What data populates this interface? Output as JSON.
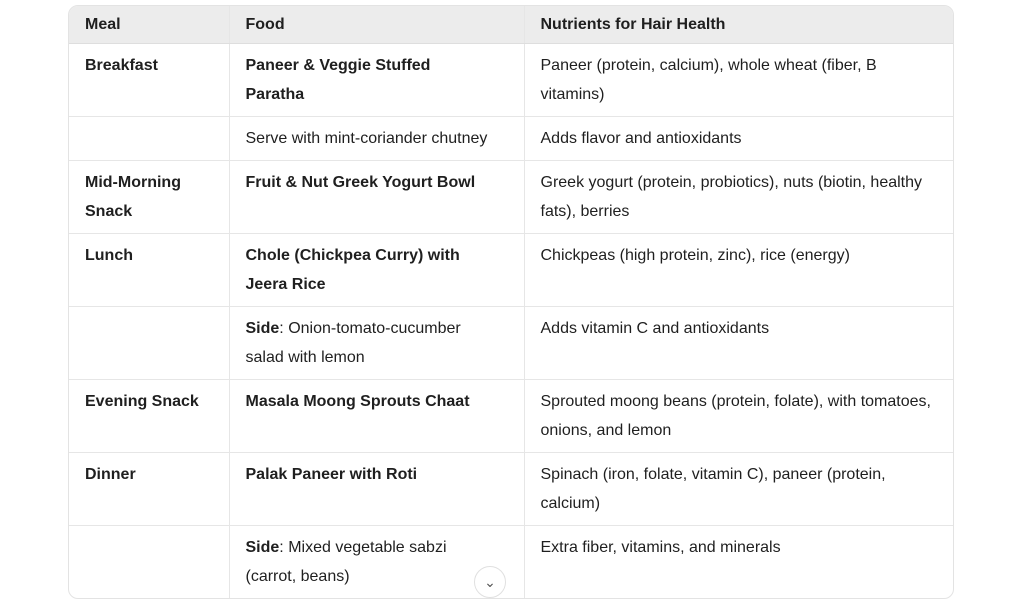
{
  "table": {
    "headers": [
      "Meal",
      "Food",
      "Nutrients for Hair Health"
    ],
    "rows": [
      {
        "meal": "Breakfast",
        "food_bold": "Paneer & Veggie Stuffed Paratha",
        "food_regular": "",
        "nutrients": "Paneer (protein, calcium), whole wheat (fiber, B vitamins)"
      },
      {
        "meal": "",
        "food_bold": "",
        "food_regular": "Serve with mint-coriander chutney",
        "nutrients": "Adds flavor and antioxidants"
      },
      {
        "meal": "Mid-Morning Snack",
        "food_bold": "Fruit & Nut Greek Yogurt Bowl",
        "food_regular": "",
        "nutrients": "Greek yogurt (protein, probiotics), nuts (biotin, healthy fats), berries"
      },
      {
        "meal": "Lunch",
        "food_bold": "Chole (Chickpea Curry) with Jeera Rice",
        "food_regular": "",
        "nutrients": "Chickpeas (high protein, zinc), rice (energy)"
      },
      {
        "meal": "",
        "food_bold": "Side",
        "food_regular": ": Onion-tomato-cucumber salad with lemon",
        "nutrients": "Adds vitamin C and antioxidants"
      },
      {
        "meal": "Evening Snack",
        "food_bold": "Masala Moong Sprouts Chaat",
        "food_regular": "",
        "nutrients": "Sprouted moong beans (protein, folate), with tomatoes, onions, and lemon"
      },
      {
        "meal": "Dinner",
        "food_bold": "Palak Paneer with Roti",
        "food_regular": "",
        "nutrients": "Spinach (iron, folate, vitamin C), paneer (protein, calcium)"
      },
      {
        "meal": "",
        "food_bold": "Side",
        "food_regular": ": Mixed vegetable sabzi (carrot, beans)",
        "nutrients": "Extra fiber, vitamins, and minerals"
      }
    ]
  },
  "scroll_button": {
    "icon": "chevron-down-icon",
    "glyph": "⌄"
  },
  "colors": {
    "header_bg": "#ececec",
    "border_outer": "#e3e3e3",
    "border_inner": "#e6e6e6",
    "text": "#1f1f1f",
    "page_bg": "#ffffff"
  }
}
